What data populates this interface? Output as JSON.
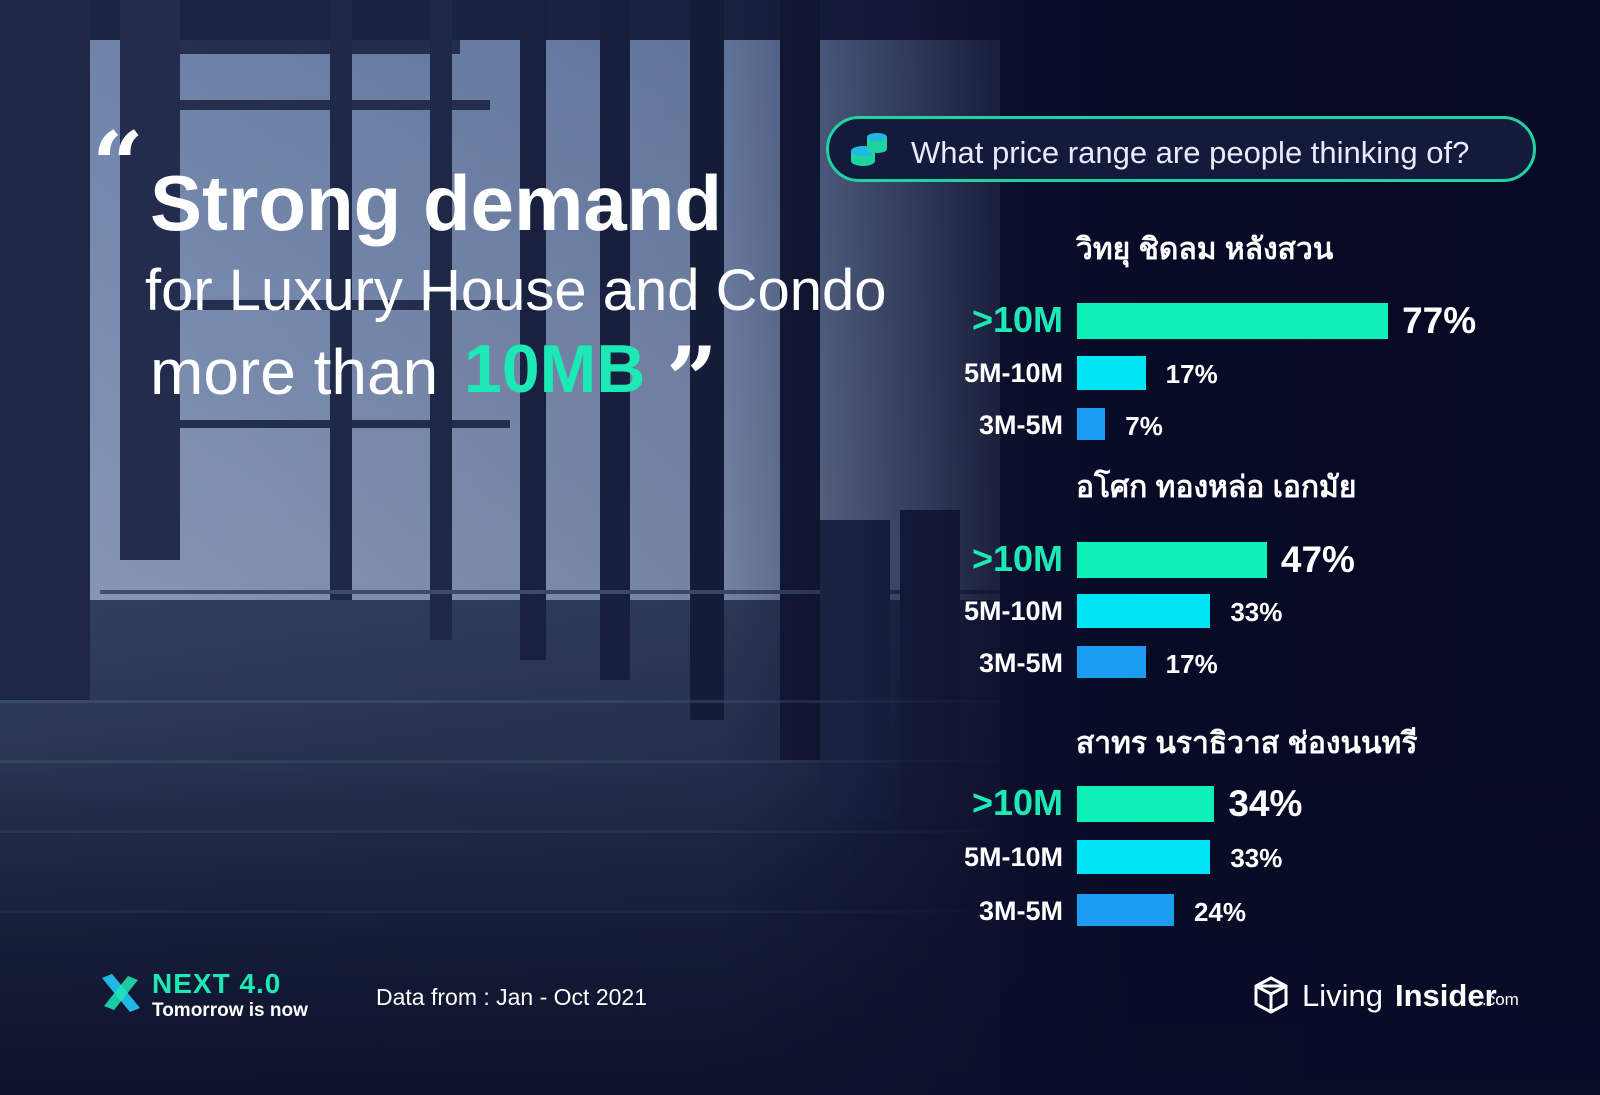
{
  "headline": {
    "open_quote": "“",
    "strong": "Strong demand",
    "line2": "for Luxury House and Condo",
    "line3_prefix": "more than",
    "accent": "10MB",
    "close_quote": "”"
  },
  "question": {
    "icon": "coins-stack-icon",
    "text": "What price range are people thinking of?"
  },
  "colors": {
    "accent": "#1de9b6",
    "bar_gt10m": "#0ff0b8",
    "bar_5m_10m": "#00e5f5",
    "bar_3m_5m": "#1a9cf0",
    "pill_border": "#1fd3a0"
  },
  "chart_data": [
    {
      "type": "bar",
      "title": "วิทยุ ชิดลม หลังสวน",
      "categories": [
        ">10M",
        "5M-10M",
        "3M-5M"
      ],
      "values": [
        77,
        17,
        7
      ],
      "value_labels": [
        "77%",
        "17%",
        "7%"
      ]
    },
    {
      "type": "bar",
      "title": "อโศก ทองหล่อ เอกมัย",
      "categories": [
        ">10M",
        "5M-10M",
        "3M-5M"
      ],
      "values": [
        47,
        33,
        17
      ],
      "value_labels": [
        "47%",
        "33%",
        "17%"
      ]
    },
    {
      "type": "bar",
      "title": "สาทร นราธิวาส ช่องนนทรี",
      "categories": [
        ">10M",
        "5M-10M",
        "3M-5M"
      ],
      "values": [
        34,
        33,
        24
      ],
      "value_labels": [
        "34%",
        "33%",
        "24%"
      ]
    }
  ],
  "footer": {
    "next_logo_icon": "next-x-logo-icon",
    "next_title": "NEXT 4.0",
    "next_tagline": "Tomorrow is now",
    "data_note": "Data from : Jan - Oct 2021",
    "brand_icon": "living-insider-cube-icon",
    "brand_living": "Living",
    "brand_insider": "Insider",
    "brand_domain": ".com"
  }
}
